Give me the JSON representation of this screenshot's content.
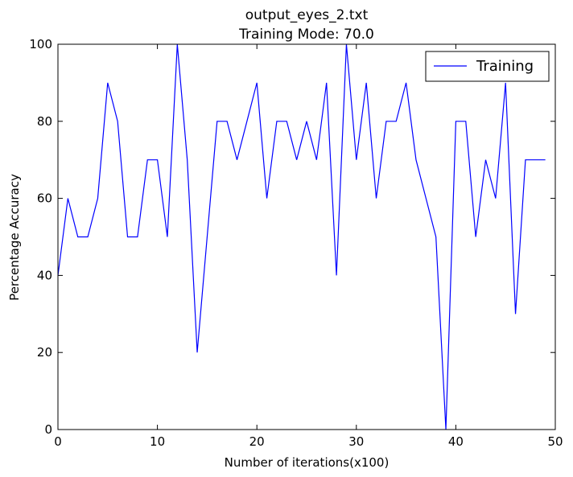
{
  "chart_data": {
    "type": "line",
    "title": "output_eyes_2.txt",
    "subtitle": "Training Mode: 70.0",
    "xlabel": "Number of iterations(x100)",
    "ylabel": "Percentage Accuracy",
    "xlim": [
      0,
      50
    ],
    "ylim": [
      0,
      100
    ],
    "xticks": [
      0,
      10,
      20,
      30,
      40,
      50
    ],
    "yticks": [
      0,
      20,
      40,
      60,
      80,
      100
    ],
    "grid": false,
    "legend_position": "top-right",
    "series": [
      {
        "name": "Training",
        "color": "#0000ff",
        "x": [
          0,
          1,
          2,
          3,
          4,
          5,
          6,
          7,
          8,
          9,
          10,
          11,
          12,
          13,
          14,
          15,
          16,
          17,
          18,
          19,
          20,
          21,
          22,
          23,
          24,
          25,
          26,
          27,
          28,
          29,
          30,
          31,
          32,
          33,
          34,
          35,
          36,
          37,
          38,
          39,
          40,
          41,
          42,
          43,
          44,
          45,
          46,
          47,
          48,
          49
        ],
        "y": [
          40,
          60,
          50,
          50,
          60,
          90,
          80,
          50,
          50,
          70,
          70,
          50,
          100,
          70,
          20,
          50,
          80,
          80,
          70,
          80,
          90,
          60,
          80,
          80,
          70,
          80,
          70,
          90,
          40,
          100,
          70,
          90,
          60,
          80,
          80,
          90,
          70,
          60,
          50,
          0,
          80,
          80,
          50,
          70,
          60,
          90,
          30,
          70,
          70,
          70
        ]
      }
    ]
  }
}
